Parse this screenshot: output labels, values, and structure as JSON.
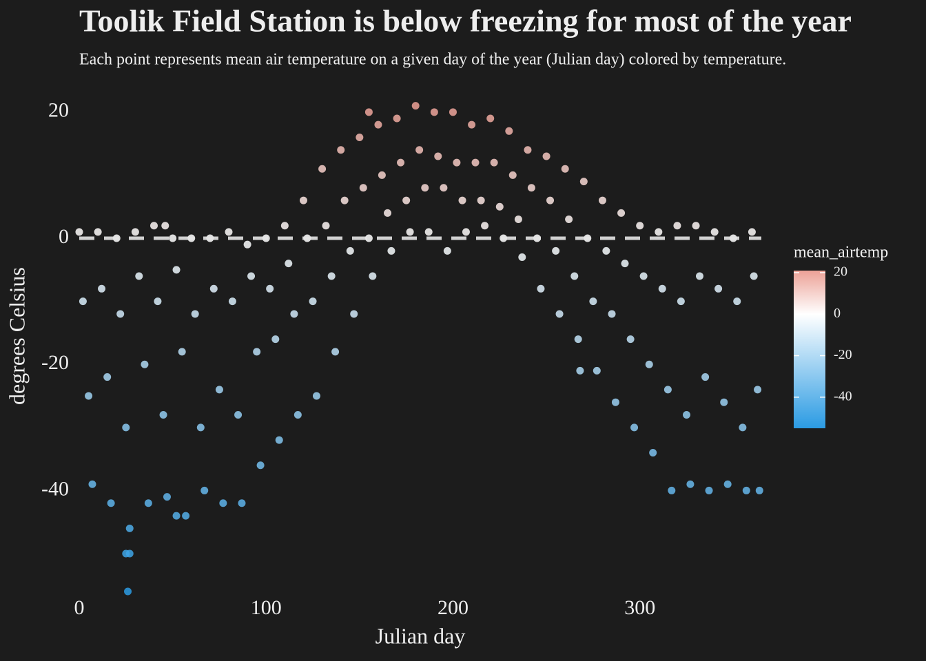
{
  "chart_data": {
    "type": "scatter",
    "title": "Toolik Field Station is below freezing for most of the year",
    "subtitle": "Each point represents mean air temperature on a given day of the year (Julian day) colored by temperature.",
    "x_label": "Julian day",
    "y_label": "degrees Celsius",
    "legend_title": "mean_airtemp",
    "xlim": [
      0,
      365
    ],
    "ylim": [
      -56,
      22
    ],
    "xticks": [
      0,
      100,
      200,
      300
    ],
    "yticks": [
      -40,
      -20,
      0,
      20
    ],
    "clim": [
      -55,
      21
    ],
    "legend_ticks": [
      -40,
      -20,
      0,
      20
    ],
    "colorscale": {
      "low": "#2b9be3",
      "mid": "#ffffff",
      "high": "#eca196"
    },
    "hline": 0,
    "x": [
      0,
      2,
      5,
      7,
      10,
      12,
      15,
      17,
      20,
      22,
      25,
      27,
      30,
      32,
      35,
      37,
      40,
      42,
      45,
      47,
      50,
      52,
      55,
      57,
      60,
      62,
      65,
      67,
      70,
      72,
      75,
      77,
      80,
      82,
      85,
      87,
      90,
      92,
      95,
      97,
      100,
      102,
      105,
      107,
      110,
      112,
      115,
      117,
      120,
      122,
      125,
      127,
      130,
      132,
      135,
      137,
      140,
      142,
      145,
      147,
      150,
      152,
      155,
      157,
      160,
      162,
      165,
      167,
      170,
      172,
      175,
      177,
      180,
      182,
      185,
      187,
      190,
      192,
      195,
      197,
      200,
      202,
      205,
      207,
      210,
      212,
      215,
      217,
      220,
      222,
      225,
      227,
      230,
      232,
      235,
      237,
      240,
      242,
      245,
      247,
      250,
      252,
      255,
      257,
      260,
      262,
      265,
      267,
      270,
      272,
      275,
      277,
      280,
      282,
      285,
      287,
      290,
      292,
      295,
      297,
      300,
      302,
      305,
      307,
      310,
      312,
      315,
      317,
      320,
      322,
      325,
      327,
      330,
      332,
      335,
      337,
      340,
      342,
      345,
      347,
      350,
      352,
      355,
      357,
      360,
      361,
      363,
      364,
      25,
      27,
      26,
      52,
      46,
      155,
      268
    ],
    "values": [
      1,
      -10,
      -25,
      -39,
      1,
      -8,
      -22,
      -42,
      0,
      -12,
      -30,
      -46,
      1,
      -6,
      -20,
      -42,
      2,
      -10,
      -28,
      -41,
      0,
      -5,
      -18,
      -44,
      0,
      -12,
      -30,
      -40,
      0,
      -8,
      -24,
      -42,
      1,
      -10,
      -28,
      -42,
      -1,
      -6,
      -18,
      -36,
      0,
      -8,
      -16,
      -32,
      2,
      -4,
      -12,
      -28,
      6,
      0,
      -10,
      -25,
      11,
      2,
      -6,
      -18,
      14,
      6,
      -2,
      -12,
      16,
      8,
      0,
      -6,
      18,
      10,
      4,
      -2,
      19,
      12,
      6,
      1,
      21,
      14,
      8,
      1,
      20,
      13,
      8,
      -2,
      20,
      12,
      6,
      1,
      18,
      12,
      6,
      2,
      19,
      12,
      5,
      0,
      17,
      10,
      3,
      -3,
      14,
      8,
      0,
      -8,
      13,
      6,
      -2,
      -12,
      11,
      3,
      -6,
      -16,
      9,
      0,
      -10,
      -21,
      6,
      -2,
      -12,
      -26,
      4,
      -4,
      -16,
      -30,
      2,
      -6,
      -20,
      -34,
      1,
      -8,
      -24,
      -40,
      2,
      -10,
      -28,
      -39,
      2,
      -6,
      -22,
      -40,
      1,
      -8,
      -26,
      -39,
      0,
      -10,
      -30,
      -40,
      1,
      -6,
      -24,
      -40,
      -50,
      -50,
      -56,
      -44,
      2,
      20,
      -21
    ]
  }
}
